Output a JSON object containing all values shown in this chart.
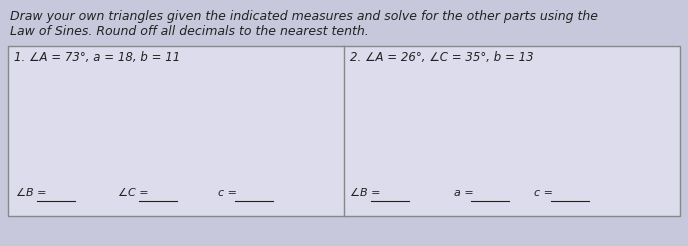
{
  "title_line1": "Draw your own triangles given the indicated measures and solve for the other parts using the",
  "title_line2": "Law of Sines. Round off all decimals to the nearest tenth.",
  "problem1_label": "1. ∠A = 73°, a = 18, b = 11",
  "problem2_label": "2. ∠A = 26°, ∠C = 35°, b = 13",
  "p1_blank1_label": "∠B =",
  "p1_blank2_label": "∠C =",
  "p1_blank3_label": "c =",
  "p2_blank1_label": "∠B =",
  "p2_blank2_label": "a =",
  "p2_blank3_label": "c =",
  "bg_color": "#c8c8dc",
  "box_color": "#dcdcec",
  "text_color": "#222222",
  "title_fontsize": 9.0,
  "label_fontsize": 8.5,
  "blank_fontsize": 8.0
}
